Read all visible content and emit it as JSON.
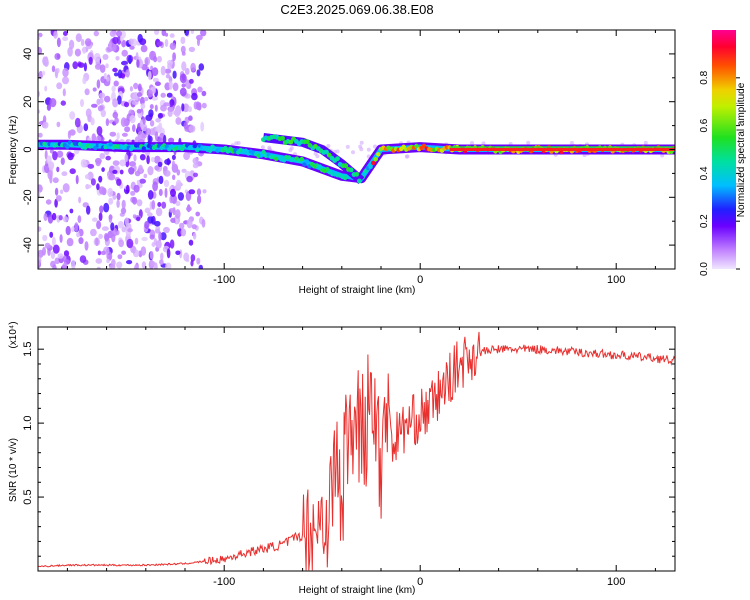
{
  "title": "C2E3.2025.069.06.38.E08",
  "chart_data": [
    {
      "type": "heatmap",
      "xlabel": "Height of straight line (km)",
      "ylabel": "Frequency (Hz)",
      "xlim": [
        -195,
        130
      ],
      "ylim": [
        -50,
        50
      ],
      "xticks": [
        -100,
        0,
        100
      ],
      "yticks": [
        -40,
        -20,
        0,
        20,
        40
      ],
      "colorbar": {
        "label": "Normalized spectral amplitude",
        "range": [
          0,
          1
        ],
        "ticks": [
          0.0,
          0.2,
          0.4,
          0.6,
          0.8
        ]
      },
      "features": [
        {
          "name": "broad scatter",
          "x_range": [
            -195,
            -110
          ],
          "freq_range": [
            -50,
            50
          ],
          "amplitude": 0.1
        },
        {
          "name": "main trace",
          "points": [
            [
              -195,
              2
            ],
            [
              -180,
              2
            ],
            [
              -150,
              1
            ],
            [
              -120,
              1
            ],
            [
              -100,
              0
            ],
            [
              -80,
              -2
            ],
            [
              -60,
              -5
            ],
            [
              -40,
              -11
            ],
            [
              -30,
              -12
            ],
            [
              -20,
              0
            ],
            [
              0,
              1
            ],
            [
              20,
              0
            ],
            [
              130,
              0
            ]
          ]
        },
        {
          "name": "upper branch",
          "points": [
            [
              -80,
              5
            ],
            [
              -60,
              3
            ],
            [
              -50,
              0
            ],
            [
              -40,
              -6
            ],
            [
              -30,
              -13
            ]
          ]
        }
      ]
    },
    {
      "type": "line",
      "xlabel": "Height of straight line (km)",
      "ylabel": "SNR (10 * v/v)",
      "y_multiplier": "(x10⁴)",
      "xlim": [
        -195,
        130
      ],
      "ylim": [
        0,
        1.65
      ],
      "xticks": [
        -100,
        0,
        100
      ],
      "yticks": [
        0.5,
        1.0,
        1.5
      ],
      "series": [
        {
          "name": "SNR",
          "color": "#e8312f",
          "x": [
            -195,
            -180,
            -160,
            -140,
            -120,
            -100,
            -90,
            -80,
            -70,
            -60,
            -50,
            -45,
            -40,
            -35,
            -30,
            -25,
            -20,
            -15,
            -10,
            -5,
            0,
            5,
            10,
            15,
            20,
            25,
            30,
            40,
            50,
            60,
            70,
            80,
            90,
            100,
            110,
            120,
            130
          ],
          "y": [
            0.03,
            0.04,
            0.04,
            0.04,
            0.05,
            0.08,
            0.12,
            0.15,
            0.18,
            0.25,
            0.35,
            0.45,
            0.6,
            0.8,
            0.95,
            1.05,
            0.8,
            0.85,
            0.95,
            1.0,
            1.05,
            1.1,
            1.2,
            1.3,
            1.4,
            1.45,
            1.48,
            1.5,
            1.5,
            1.5,
            1.49,
            1.48,
            1.47,
            1.46,
            1.45,
            1.44,
            1.42
          ]
        }
      ]
    }
  ]
}
